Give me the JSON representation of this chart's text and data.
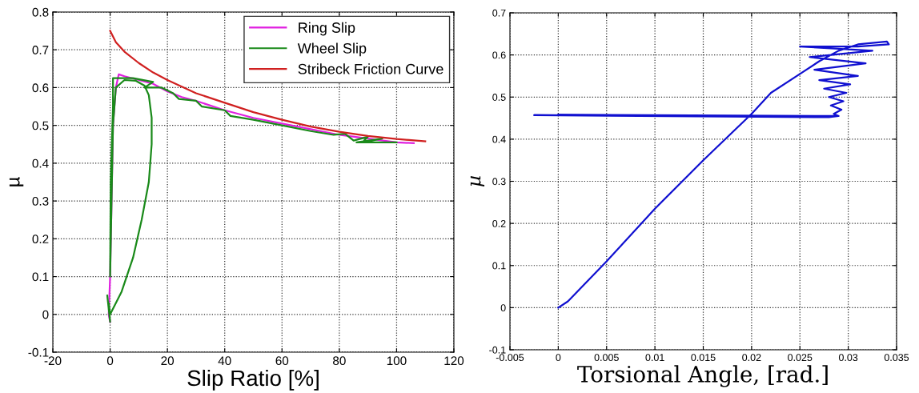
{
  "chart_data": [
    {
      "type": "line",
      "xlabel": "Slip Ratio [%]",
      "ylabel": "µ",
      "xlim": [
        -20,
        120
      ],
      "xticks": [
        -20,
        0,
        20,
        40,
        60,
        80,
        100,
        120
      ],
      "ylim": [
        -0.1,
        0.8
      ],
      "yticks": [
        -0.1,
        0,
        0.1,
        0.2,
        0.3,
        0.4,
        0.5,
        0.6,
        0.7,
        0.8
      ],
      "grid": true,
      "legend": "top right",
      "series": [
        {
          "name": "Ring Slip",
          "color": "#e020e0",
          "x": [
            0,
            -0.5,
            0,
            0.5,
            1,
            2,
            3,
            5,
            10,
            15,
            20,
            25,
            30,
            40,
            50,
            60,
            70,
            80,
            90,
            100,
            106
          ],
          "values": [
            -0.02,
            0.0,
            0.1,
            0.3,
            0.5,
            0.6,
            0.635,
            0.63,
            0.62,
            0.61,
            0.59,
            0.575,
            0.565,
            0.54,
            0.52,
            0.505,
            0.49,
            0.475,
            0.465,
            0.455,
            0.453
          ]
        },
        {
          "name": "Wheel Slip",
          "color": "#1a8a1a",
          "x": [
            -1,
            0,
            -0.5,
            0,
            4,
            8,
            11,
            13.5,
            14.5,
            14.5,
            13.5,
            12,
            9,
            5,
            2,
            1,
            0.5,
            0,
            0.2,
            1,
            1,
            8,
            15,
            12,
            18,
            22,
            24,
            30,
            32,
            40,
            42,
            50,
            60,
            70,
            78,
            82,
            85,
            90,
            88,
            95,
            86,
            100
          ],
          "values": [
            0.05,
            -0.02,
            0.03,
            0.0,
            0.06,
            0.15,
            0.25,
            0.35,
            0.45,
            0.52,
            0.58,
            0.605,
            0.618,
            0.62,
            0.6,
            0.5,
            0.3,
            0.1,
            0.35,
            0.55,
            0.625,
            0.625,
            0.615,
            0.6,
            0.6,
            0.585,
            0.57,
            0.565,
            0.55,
            0.54,
            0.525,
            0.515,
            0.5,
            0.485,
            0.475,
            0.478,
            0.46,
            0.47,
            0.455,
            0.465,
            0.455,
            0.455
          ]
        },
        {
          "name": "Stribeck Friction Curve",
          "color": "#d02020",
          "x": [
            0,
            2,
            5,
            10,
            15,
            20,
            30,
            40,
            50,
            60,
            70,
            80,
            90,
            100,
            110
          ],
          "values": [
            0.75,
            0.72,
            0.695,
            0.665,
            0.64,
            0.62,
            0.585,
            0.56,
            0.535,
            0.515,
            0.497,
            0.483,
            0.472,
            0.464,
            0.458
          ]
        }
      ]
    },
    {
      "type": "line",
      "xlabel": "Torsional Angle, [rad.]",
      "ylabel": "µ",
      "xlim": [
        -0.005,
        0.035
      ],
      "xticks": [
        -0.005,
        0,
        0.005,
        0.01,
        0.015,
        0.02,
        0.025,
        0.03,
        0.035
      ],
      "ylim": [
        -0.1,
        0.7
      ],
      "yticks": [
        -0.1,
        0,
        0.1,
        0.2,
        0.3,
        0.4,
        0.5,
        0.6,
        0.7
      ],
      "grid": true,
      "series": [
        {
          "color": "#1010d0",
          "x": [
            0,
            0.001,
            0.005,
            0.01,
            0.015,
            0.02,
            0.022,
            0.025,
            0.027,
            0.029,
            0.031,
            0.034,
            0.0342,
            0.031,
            0.025,
            0.0325,
            0.026,
            0.0318,
            0.0265,
            0.031,
            0.027,
            0.0302,
            0.0275,
            0.0298,
            0.028,
            0.0295,
            0.0282,
            0.0293,
            0.0285,
            0.029,
            0.028,
            -0.0025,
            0.029,
            0.0
          ],
          "values": [
            0,
            0.015,
            0.11,
            0.235,
            0.35,
            0.46,
            0.51,
            0.555,
            0.585,
            0.61,
            0.625,
            0.632,
            0.625,
            0.62,
            0.62,
            0.61,
            0.595,
            0.58,
            0.565,
            0.55,
            0.54,
            0.53,
            0.52,
            0.51,
            0.5,
            0.49,
            0.48,
            0.47,
            0.46,
            0.455,
            0.452,
            0.457,
            0.455,
            0.458
          ]
        }
      ]
    }
  ]
}
